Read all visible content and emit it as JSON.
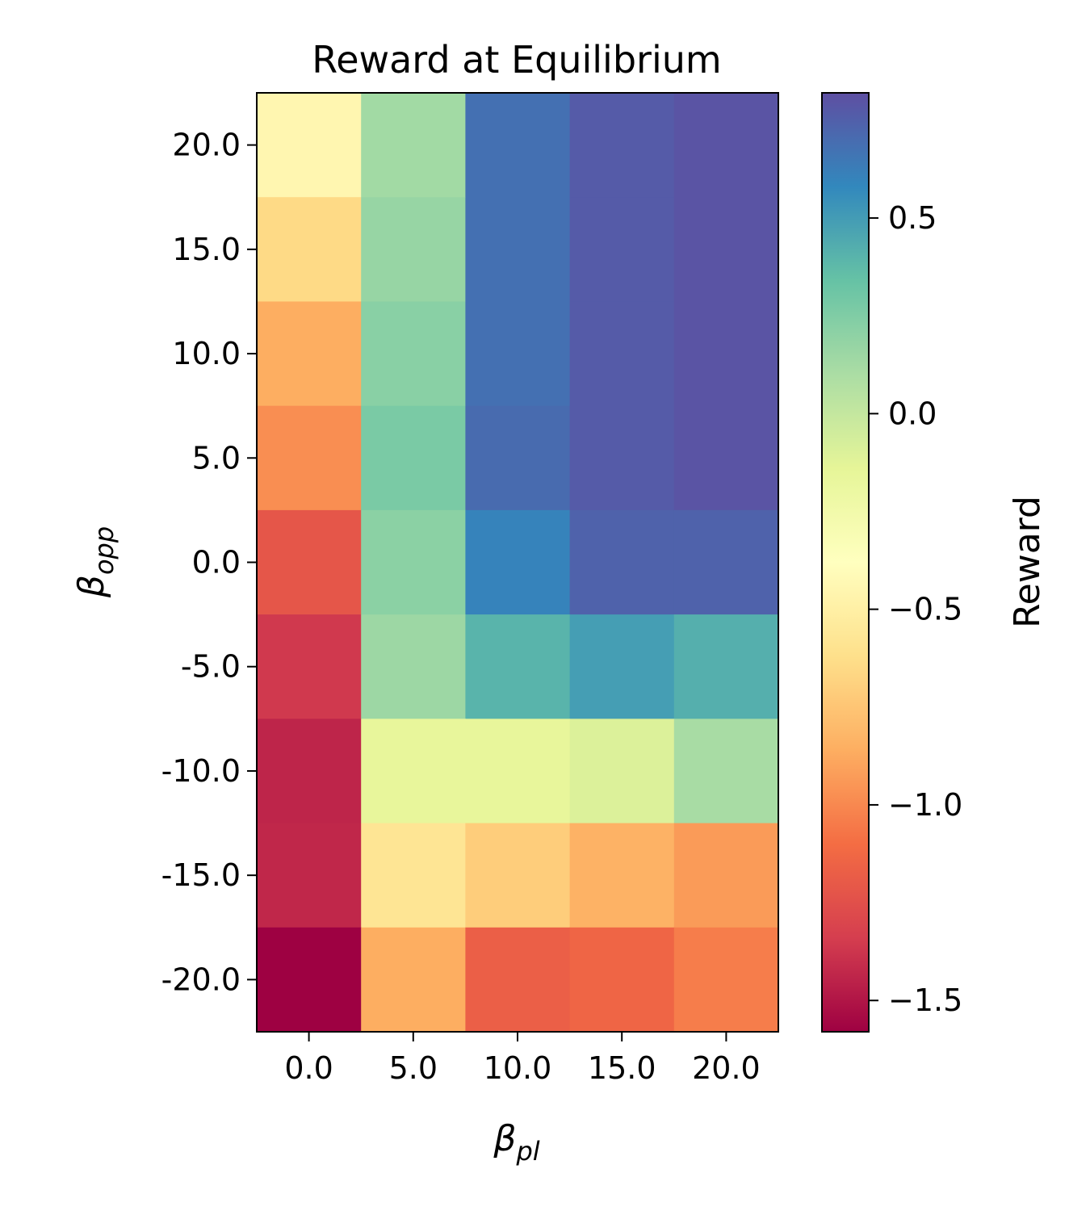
{
  "chart_data": {
    "type": "heatmap",
    "title": "Reward at Equilibrium",
    "xlabel": {
      "base": "β",
      "sub": "pl"
    },
    "ylabel": {
      "base": "β",
      "sub": "opp"
    },
    "x_tick_labels": [
      "0.0",
      "5.0",
      "10.0",
      "15.0",
      "20.0"
    ],
    "y_tick_labels": [
      "20.0",
      "15.0",
      "10.0",
      "5.0",
      "0.0",
      "-5.0",
      "-10.0",
      "-15.0",
      "-20.0"
    ],
    "colorscale": "Spectral",
    "colorbar": {
      "label": "Reward",
      "range": [
        -1.58,
        0.82
      ],
      "ticks": [
        0.5,
        0.0,
        -0.5,
        -1.0,
        -1.5
      ],
      "tick_labels": [
        "0.5",
        "0.0",
        "−0.5",
        "−1.0",
        "−1.5"
      ]
    },
    "values": [
      [
        -0.45,
        0.13,
        0.68,
        0.77,
        0.8
      ],
      [
        -0.65,
        0.17,
        0.68,
        0.77,
        0.8
      ],
      [
        -0.86,
        0.22,
        0.68,
        0.77,
        0.8
      ],
      [
        -0.98,
        0.27,
        0.7,
        0.77,
        0.8
      ],
      [
        -1.22,
        0.21,
        0.6,
        0.74,
        0.74
      ],
      [
        -1.36,
        0.15,
        0.4,
        0.49,
        0.42
      ],
      [
        -1.44,
        -0.16,
        -0.16,
        -0.1,
        0.11
      ],
      [
        -1.43,
        -0.58,
        -0.71,
        -0.84,
        -0.93
      ],
      [
        -1.58,
        -0.86,
        -1.17,
        -1.14,
        -1.04
      ]
    ]
  }
}
